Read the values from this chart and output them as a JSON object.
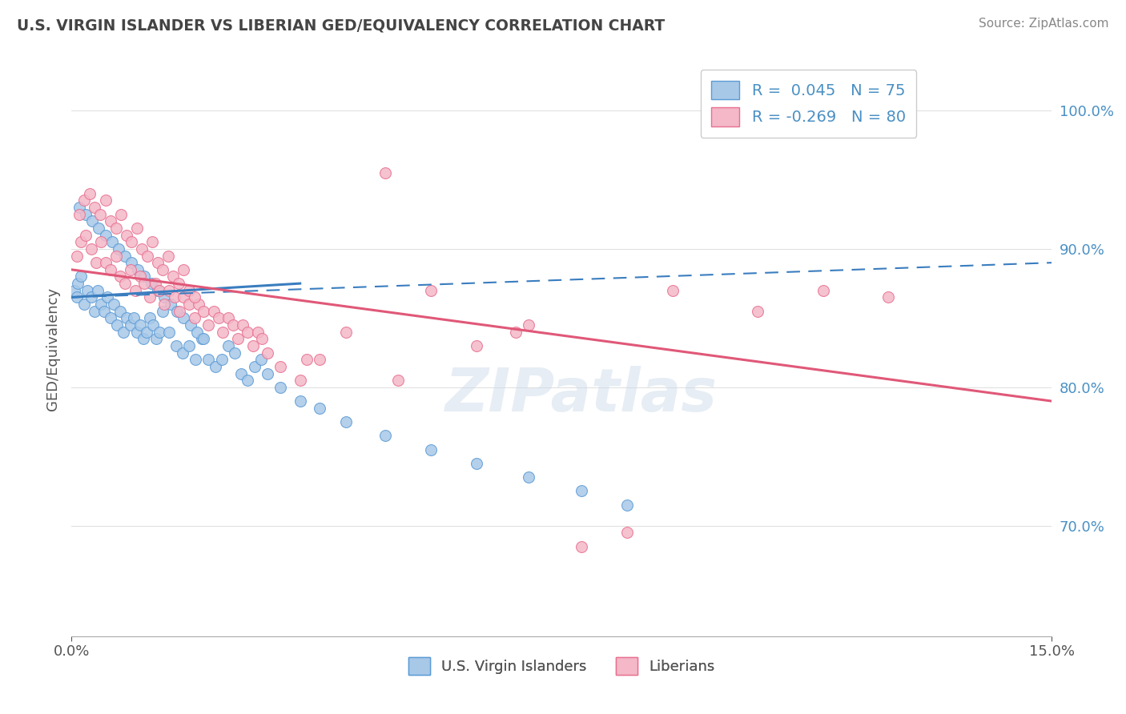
{
  "title": "U.S. VIRGIN ISLANDER VS LIBERIAN GED/EQUIVALENCY CORRELATION CHART",
  "source": "Source: ZipAtlas.com",
  "ylabel": "GED/Equivalency",
  "xlim": [
    0.0,
    15.0
  ],
  "ylim": [
    62.0,
    103.5
  ],
  "watermark": "ZIPatlas",
  "blue_color": "#a8c8e8",
  "blue_edge_color": "#5b9bd5",
  "blue_line_color": "#3a7dbf",
  "pink_color": "#f4b8c8",
  "pink_edge_color": "#e87090",
  "pink_line_color": "#e05878",
  "y_ticks": [
    70.0,
    80.0,
    90.0,
    100.0
  ],
  "y_tick_labels": [
    "70.0%",
    "80.0%",
    "90.0%",
    "100.0%"
  ],
  "blue_scatter_x": [
    0.05,
    0.08,
    0.1,
    0.15,
    0.2,
    0.25,
    0.3,
    0.35,
    0.4,
    0.45,
    0.5,
    0.55,
    0.6,
    0.65,
    0.7,
    0.75,
    0.8,
    0.85,
    0.9,
    0.95,
    1.0,
    1.05,
    1.1,
    1.15,
    1.2,
    1.25,
    1.3,
    1.35,
    1.4,
    1.5,
    1.6,
    1.7,
    1.8,
    1.9,
    2.0,
    2.1,
    2.2,
    2.3,
    2.4,
    2.5,
    2.6,
    2.7,
    2.8,
    2.9,
    3.0,
    3.2,
    3.5,
    3.8,
    4.2,
    4.8,
    5.5,
    6.2,
    7.0,
    7.8,
    8.5,
    0.12,
    0.22,
    0.32,
    0.42,
    0.52,
    0.62,
    0.72,
    0.82,
    0.92,
    1.02,
    1.12,
    1.22,
    1.32,
    1.42,
    1.52,
    1.62,
    1.72,
    1.82,
    1.92,
    2.02
  ],
  "blue_scatter_y": [
    87.0,
    86.5,
    87.5,
    88.0,
    86.0,
    87.0,
    86.5,
    85.5,
    87.0,
    86.0,
    85.5,
    86.5,
    85.0,
    86.0,
    84.5,
    85.5,
    84.0,
    85.0,
    84.5,
    85.0,
    84.0,
    84.5,
    83.5,
    84.0,
    85.0,
    84.5,
    83.5,
    84.0,
    85.5,
    84.0,
    83.0,
    82.5,
    83.0,
    82.0,
    83.5,
    82.0,
    81.5,
    82.0,
    83.0,
    82.5,
    81.0,
    80.5,
    81.5,
    82.0,
    81.0,
    80.0,
    79.0,
    78.5,
    77.5,
    76.5,
    75.5,
    74.5,
    73.5,
    72.5,
    71.5,
    93.0,
    92.5,
    92.0,
    91.5,
    91.0,
    90.5,
    90.0,
    89.5,
    89.0,
    88.5,
    88.0,
    87.5,
    87.0,
    86.5,
    86.0,
    85.5,
    85.0,
    84.5,
    84.0,
    83.5
  ],
  "pink_scatter_x": [
    0.08,
    0.15,
    0.22,
    0.3,
    0.38,
    0.45,
    0.52,
    0.6,
    0.68,
    0.75,
    0.82,
    0.9,
    0.98,
    1.05,
    1.12,
    1.2,
    1.28,
    1.35,
    1.42,
    1.5,
    1.58,
    1.65,
    1.72,
    1.8,
    1.88,
    1.95,
    2.02,
    2.1,
    2.18,
    2.25,
    2.32,
    2.4,
    2.48,
    2.55,
    2.62,
    2.7,
    2.78,
    2.85,
    2.92,
    3.0,
    3.2,
    3.5,
    3.8,
    4.2,
    4.8,
    5.5,
    6.2,
    7.0,
    7.8,
    8.5,
    9.2,
    10.5,
    11.5,
    12.5,
    0.12,
    0.2,
    0.28,
    0.36,
    0.44,
    0.52,
    0.6,
    0.68,
    0.76,
    0.84,
    0.92,
    1.0,
    1.08,
    1.16,
    1.24,
    1.32,
    1.4,
    1.48,
    1.56,
    1.64,
    1.72,
    1.8,
    1.88,
    3.6,
    5.0,
    6.8
  ],
  "pink_scatter_y": [
    89.5,
    90.5,
    91.0,
    90.0,
    89.0,
    90.5,
    89.0,
    88.5,
    89.5,
    88.0,
    87.5,
    88.5,
    87.0,
    88.0,
    87.5,
    86.5,
    87.5,
    87.0,
    86.0,
    87.0,
    86.5,
    85.5,
    86.5,
    86.0,
    85.0,
    86.0,
    85.5,
    84.5,
    85.5,
    85.0,
    84.0,
    85.0,
    84.5,
    83.5,
    84.5,
    84.0,
    83.0,
    84.0,
    83.5,
    82.5,
    81.5,
    80.5,
    82.0,
    84.0,
    95.5,
    87.0,
    83.0,
    84.5,
    68.5,
    69.5,
    87.0,
    85.5,
    87.0,
    86.5,
    92.5,
    93.5,
    94.0,
    93.0,
    92.5,
    93.5,
    92.0,
    91.5,
    92.5,
    91.0,
    90.5,
    91.5,
    90.0,
    89.5,
    90.5,
    89.0,
    88.5,
    89.5,
    88.0,
    87.5,
    88.5,
    87.0,
    86.5,
    82.0,
    80.5,
    84.0
  ],
  "blue_solid_trend": [
    0.0,
    3.5,
    86.5,
    87.5
  ],
  "blue_dash_trend": [
    0.0,
    15.0,
    86.5,
    89.0
  ],
  "pink_trend": [
    0.0,
    15.0,
    88.5,
    79.0
  ],
  "grid_color": "#dddddd",
  "tick_color": "#4a90c4",
  "title_color": "#444444",
  "source_color": "#888888"
}
